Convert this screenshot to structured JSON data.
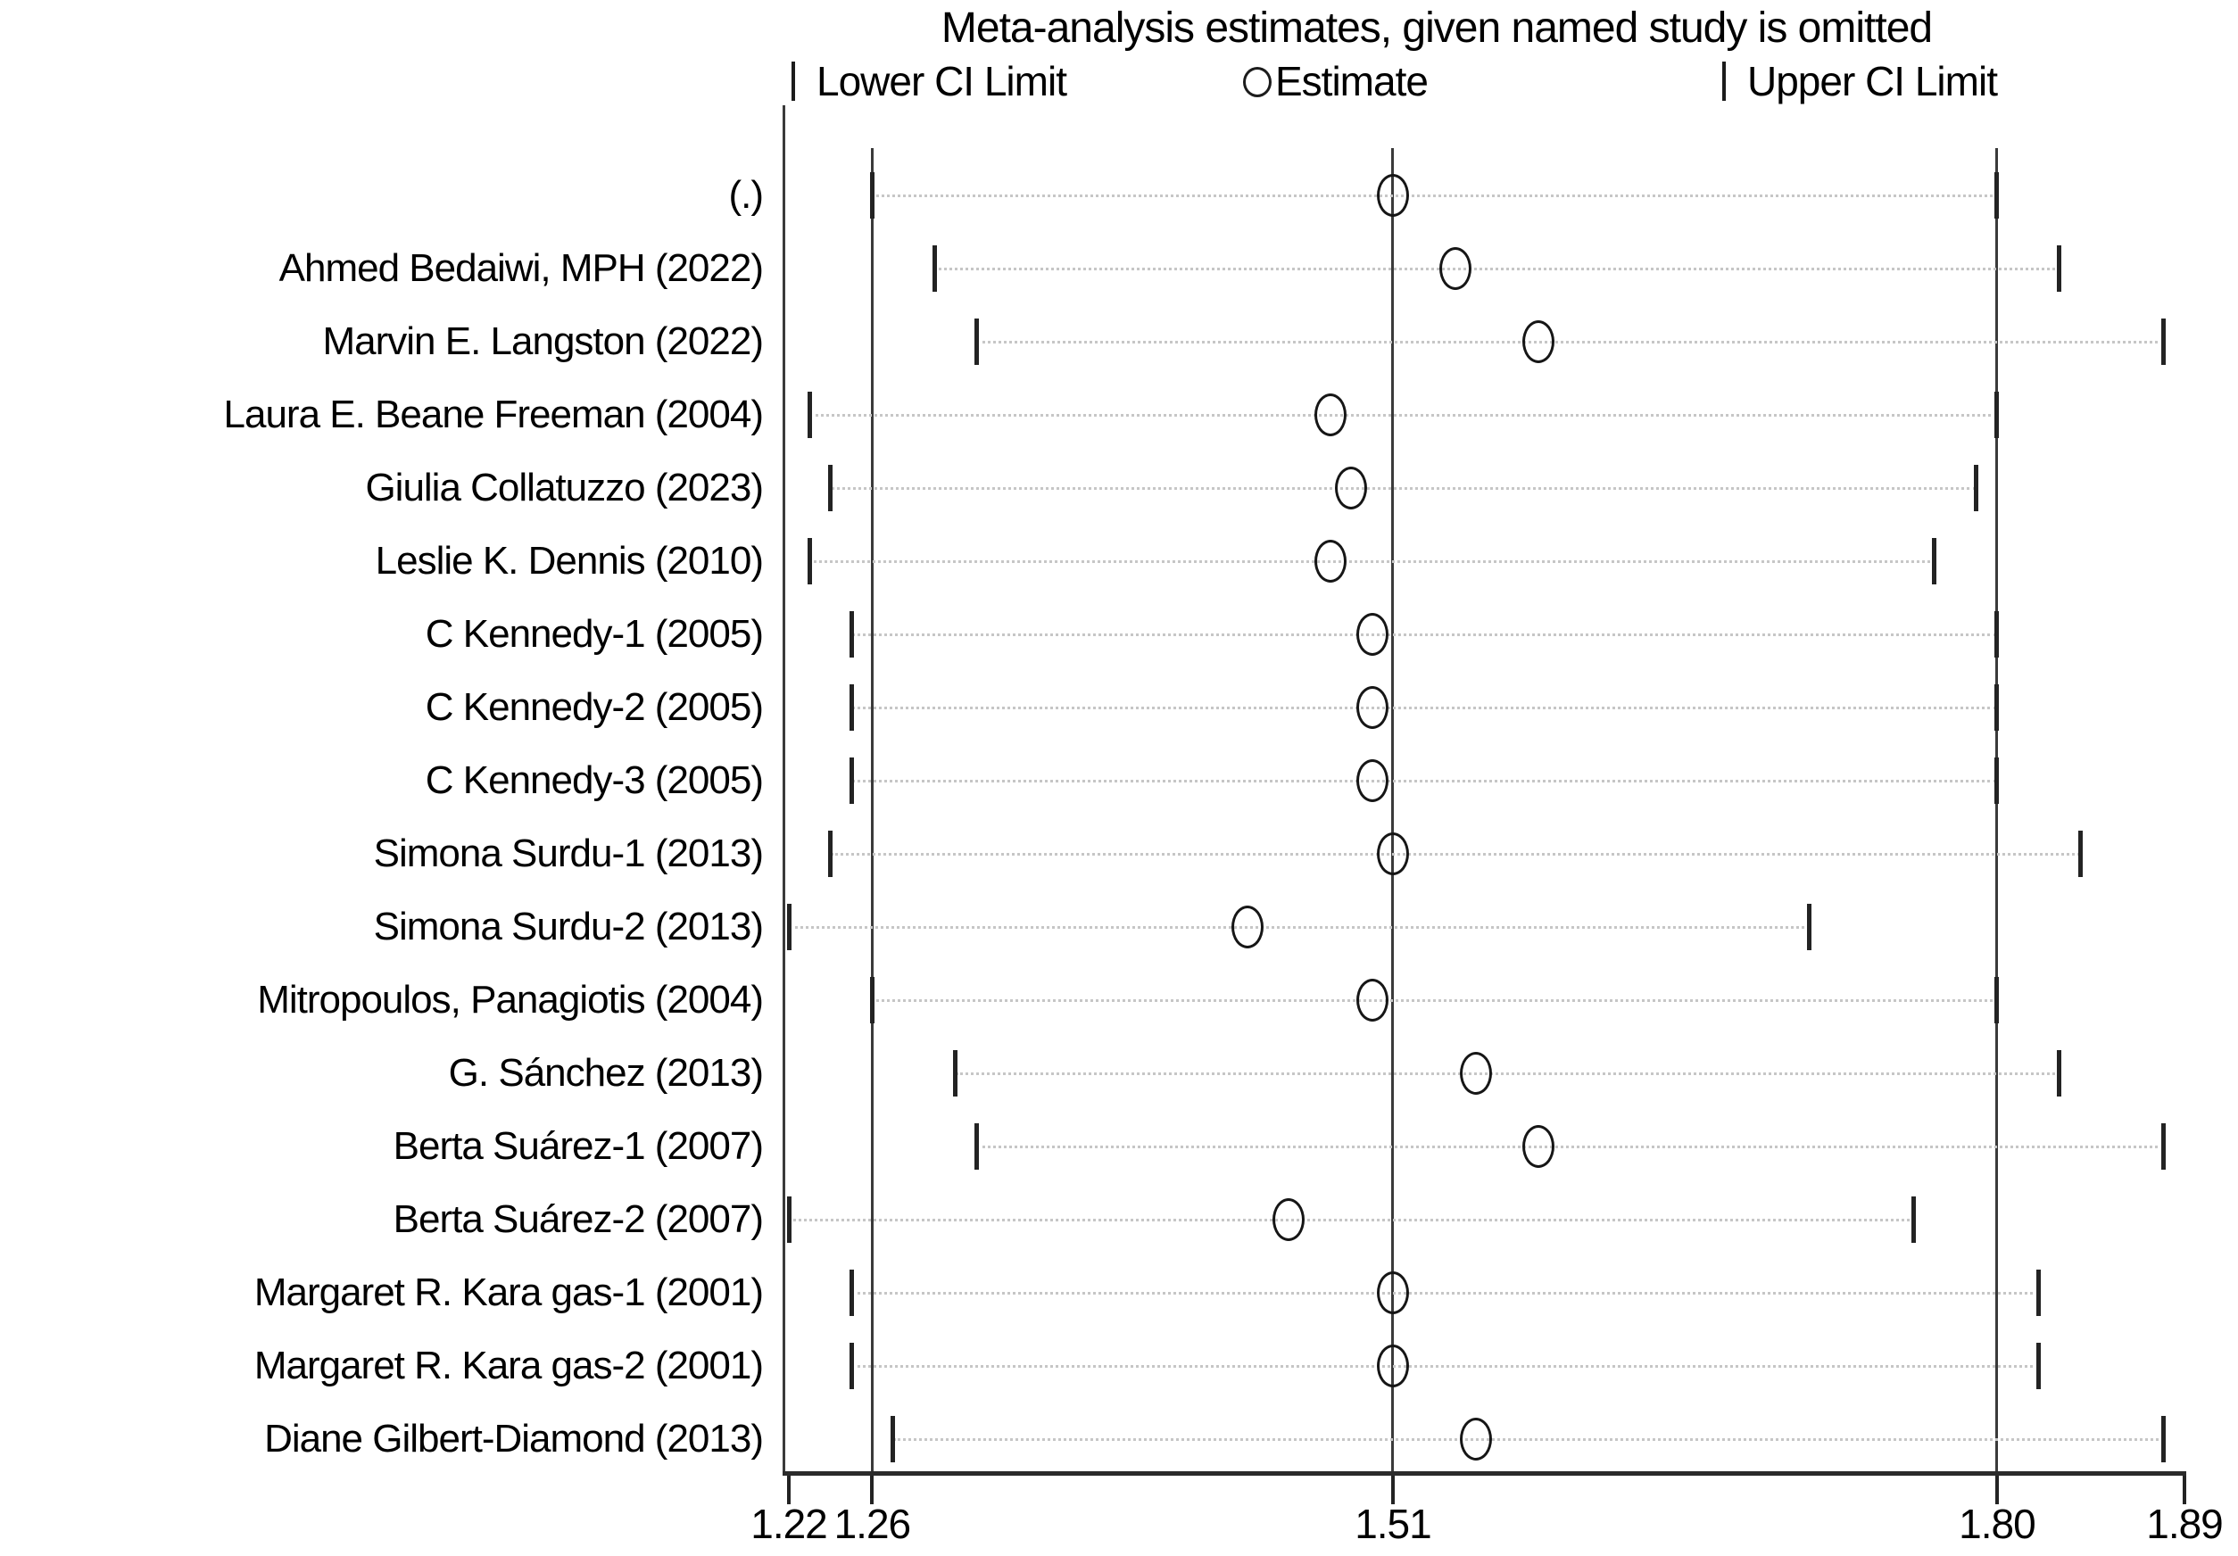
{
  "title": "Meta-analysis estimates, given named study is omitted",
  "legend": {
    "lower_label": "Lower CI Limit",
    "estimate_label": "Estimate",
    "upper_label": "Upper CI Limit"
  },
  "colors": {
    "background": "#ffffff",
    "text": "#000000",
    "solid_lines": "#3a3a3a",
    "marker_stroke": "#161616",
    "dotted_leader": "#c6c6c6"
  },
  "chart_data": {
    "type": "scatter",
    "subtype": "leave-one-out-sensitivity-forest",
    "title": "Meta-analysis estimates, given named study is omitted",
    "xlabel": "",
    "ylabel": "",
    "x_axis": {
      "range": [
        1.22,
        1.89
      ],
      "tick_values": [
        1.22,
        1.26,
        1.51,
        1.8,
        1.89
      ],
      "tick_labels": [
        "1.22",
        "1.26",
        "1.51",
        "1.80",
        "1.89"
      ]
    },
    "reference_lines": [
      1.26,
      1.51,
      1.8
    ],
    "overall": {
      "estimate": 1.51,
      "lower": 1.26,
      "upper": 1.8
    },
    "grid": "dotted row leaders only",
    "legend_position": "top",
    "studies": [
      {
        "label": "(.)",
        "lower": 1.26,
        "estimate": 1.51,
        "upper": 1.8
      },
      {
        "label": "Ahmed Bedaiwi, MPH (2022)",
        "lower": 1.29,
        "estimate": 1.54,
        "upper": 1.83
      },
      {
        "label": "Marvin E. Langston (2022)",
        "lower": 1.31,
        "estimate": 1.58,
        "upper": 1.88
      },
      {
        "label": "Laura E. Beane Freeman (2004)",
        "lower": 1.23,
        "estimate": 1.48,
        "upper": 1.8
      },
      {
        "label": "Giulia Collatuzzo (2023)",
        "lower": 1.24,
        "estimate": 1.49,
        "upper": 1.79
      },
      {
        "label": "Leslie K. Dennis (2010)",
        "lower": 1.23,
        "estimate": 1.48,
        "upper": 1.77
      },
      {
        "label": "C Kennedy-1 (2005)",
        "lower": 1.25,
        "estimate": 1.5,
        "upper": 1.8
      },
      {
        "label": "C Kennedy-2 (2005)",
        "lower": 1.25,
        "estimate": 1.5,
        "upper": 1.8
      },
      {
        "label": "C Kennedy-3 (2005)",
        "lower": 1.25,
        "estimate": 1.5,
        "upper": 1.8
      },
      {
        "label": "Simona Surdu-1 (2013)",
        "lower": 1.24,
        "estimate": 1.51,
        "upper": 1.84
      },
      {
        "label": "Simona Surdu-2 (2013)",
        "lower": 1.22,
        "estimate": 1.44,
        "upper": 1.71
      },
      {
        "label": "Mitropoulos, Panagiotis (2004)",
        "lower": 1.26,
        "estimate": 1.5,
        "upper": 1.8
      },
      {
        "label": "G. Sánchez (2013)",
        "lower": 1.3,
        "estimate": 1.55,
        "upper": 1.83
      },
      {
        "label": "Berta Suárez-1 (2007)",
        "lower": 1.31,
        "estimate": 1.58,
        "upper": 1.88
      },
      {
        "label": "Berta Suárez-2 (2007)",
        "lower": 1.22,
        "estimate": 1.46,
        "upper": 1.76
      },
      {
        "label": "Margaret R. Kara gas-1 (2001)",
        "lower": 1.25,
        "estimate": 1.51,
        "upper": 1.82
      },
      {
        "label": "Margaret R. Kara gas-2 (2001)",
        "lower": 1.25,
        "estimate": 1.51,
        "upper": 1.82
      },
      {
        "label": "Diane Gilbert-Diamond (2013)",
        "lower": 1.27,
        "estimate": 1.55,
        "upper": 1.88
      }
    ]
  }
}
